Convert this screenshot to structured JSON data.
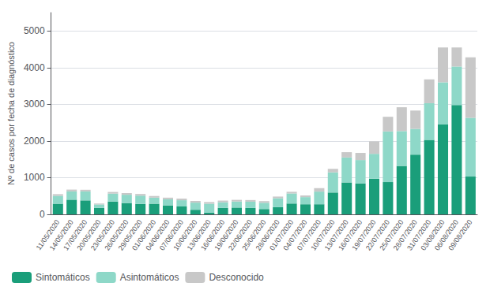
{
  "chart_data": {
    "type": "bar",
    "stacked": true,
    "categories": [
      "11/05/2020",
      "14/05/2020",
      "17/05/2020",
      "20/05/2020",
      "23/05/2020",
      "26/05/2020",
      "29/05/2020",
      "01/06/2020",
      "04/06/2020",
      "07/06/2020",
      "10/06/2020",
      "13/06/2020",
      "16/06/2020",
      "19/06/2020",
      "22/06/2020",
      "25/06/2020",
      "28/06/2020",
      "01/07/2020",
      "04/07/2020",
      "07/07/2020",
      "10/07/2020",
      "13/07/2020",
      "16/07/2020",
      "19/07/2020",
      "22/07/2020",
      "25/07/2020",
      "28/07/2020",
      "31/07/2020",
      "03/08/2020",
      "06/08/2020",
      "09/08/2020"
    ],
    "series": [
      {
        "name": "Sintomáticos",
        "color": "#1a9e7a",
        "values": [
          290,
          400,
          380,
          175,
          350,
          310,
          285,
          290,
          245,
          215,
          125,
          45,
          175,
          185,
          175,
          145,
          195,
          295,
          275,
          275,
          595,
          870,
          840,
          970,
          880,
          1320,
          1630,
          2030,
          2450,
          2980,
          1030
        ]
      },
      {
        "name": "Asintomáticos",
        "color": "#8ed8c8",
        "values": [
          215,
          225,
          245,
          95,
          215,
          225,
          225,
          165,
          165,
          170,
          195,
          245,
          155,
          165,
          170,
          170,
          245,
          275,
          195,
          345,
          550,
          680,
          640,
          680,
          1380,
          950,
          700,
          1000,
          1150,
          1050,
          1600
        ]
      },
      {
        "name": "Desconocido",
        "color": "#c8c8c8",
        "values": [
          45,
          50,
          45,
          25,
          45,
          45,
          45,
          45,
          45,
          45,
          45,
          45,
          45,
          45,
          45,
          45,
          45,
          45,
          45,
          95,
          95,
          145,
          195,
          340,
          400,
          650,
          500,
          650,
          950,
          520,
          1650
        ]
      }
    ],
    "ylabel": "Nº de casos por fecha de diagnóstico",
    "ylim": [
      0,
      5500
    ],
    "yticks": [
      0,
      1000,
      2000,
      3000,
      4000,
      5000
    ],
    "grid": true,
    "legend": "bottom left"
  }
}
